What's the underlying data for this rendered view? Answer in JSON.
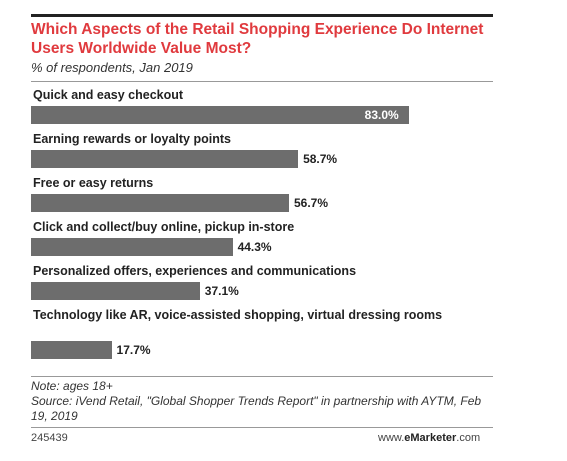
{
  "header": {
    "title": "Which Aspects of the Retail Shopping Experience Do Internet Users Worldwide Value Most?",
    "subtitle": "% of respondents, Jan 2019"
  },
  "chart_data": {
    "type": "bar",
    "orientation": "horizontal",
    "categories": [
      "Quick and easy checkout",
      "Earning rewards or loyalty points",
      "Free or easy returns",
      "Click and collect/buy online, pickup in-store",
      "Personalized offers, experiences and communications",
      "Technology like AR, voice-assisted shopping, virtual dressing rooms"
    ],
    "values": [
      83.0,
      58.7,
      56.7,
      44.3,
      37.1,
      17.7
    ],
    "value_labels": [
      "83.0%",
      "58.7%",
      "56.7%",
      "44.3%",
      "37.1%",
      "17.7%"
    ],
    "unit": "%",
    "xlim": [
      0,
      100
    ],
    "grid": false,
    "bar_color": "#6d6d6d"
  },
  "footer": {
    "note": "Note: ages 18+",
    "source": "Source: iVend Retail, \"Global Shopper Trends Report\" in partnership with AYTM, Feb 19, 2019",
    "chart_id": "245439",
    "brand_prefix": "www.",
    "brand_name": "eMarketer",
    "brand_suffix": ".com"
  },
  "colors": {
    "title": "#e03a3e",
    "bar": "#6d6d6d"
  }
}
